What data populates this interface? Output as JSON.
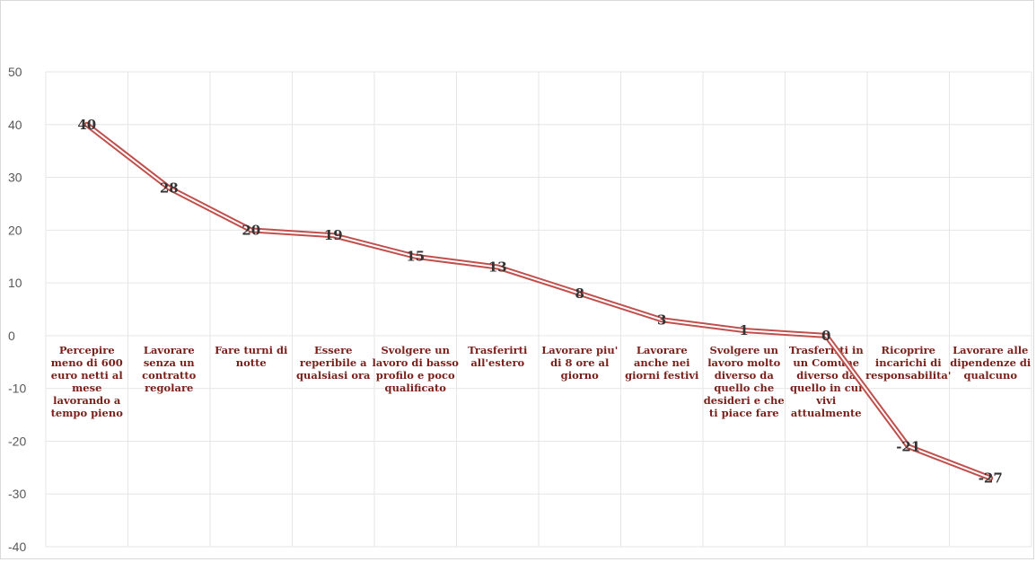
{
  "chart_data": {
    "type": "line",
    "categories": [
      [
        "Percepire",
        "meno di 600",
        "euro netti al",
        "mese",
        "lavorando a",
        "tempo pieno"
      ],
      [
        "Lavorare",
        "senza un",
        "contratto",
        "regolare"
      ],
      [
        "Fare turni di",
        "notte"
      ],
      [
        "Essere",
        "reperibile a",
        "qualsiasi ora"
      ],
      [
        "Svolgere un",
        "lavoro di basso",
        "profilo e poco",
        "qualificato"
      ],
      [
        "Trasferirti",
        "all'estero"
      ],
      [
        "Lavorare piu'",
        "di 8 ore al",
        "giorno"
      ],
      [
        "Lavorare",
        "anche nei",
        "giorni festivi"
      ],
      [
        "Svolgere un",
        "lavoro molto",
        "diverso da",
        "quello che",
        "desideri e che",
        "ti piace fare"
      ],
      [
        "Trasferirti in",
        "un Comune",
        "diverso da",
        "quello in cui",
        "vivi",
        "attualmente"
      ],
      [
        "Ricoprire",
        "incarichi di",
        "responsabilita'"
      ],
      [
        "Lavorare alle",
        "dipendenze di",
        "qualcuno"
      ]
    ],
    "series": [
      {
        "values": [
          40,
          28,
          20,
          19,
          15,
          13,
          8,
          3,
          1,
          0,
          -21,
          -27
        ]
      }
    ],
    "data_labels": [
      "40",
      "28",
      "20",
      "19",
      "15",
      "13",
      "8",
      "3",
      "1",
      "0",
      "-21",
      "-27"
    ],
    "yticks": [
      "50",
      "40",
      "30",
      "20",
      "10",
      "0",
      "-10",
      "-20",
      "-30",
      "-40"
    ],
    "ylim": [
      -40,
      50
    ],
    "grid": true,
    "line_color": "#c0504d"
  }
}
